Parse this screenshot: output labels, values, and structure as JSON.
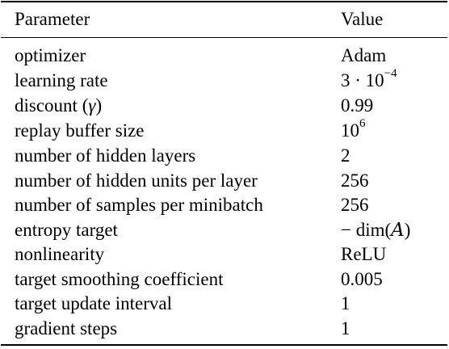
{
  "header": {
    "param_label": "Parameter",
    "value_label": "Value"
  },
  "rows": [
    {
      "param": "optimizer",
      "value": "Adam"
    },
    {
      "param": "learning rate",
      "value_base": "3 · 10",
      "value_exp": "−4"
    },
    {
      "param_text": "discount (",
      "param_symbol": "γ",
      "param_close": ")",
      "value": "0.99"
    },
    {
      "param": "replay buffer size",
      "value_base": "10",
      "value_exp": "6"
    },
    {
      "param": "number of hidden layers",
      "value": "2"
    },
    {
      "param": "number of hidden units per layer",
      "value": "256"
    },
    {
      "param": "number of samples per minibatch",
      "value": "256"
    },
    {
      "param": "entropy target",
      "value_prefix": "− dim(",
      "value_symbol": "A",
      "value_suffix": ")"
    },
    {
      "param": "nonlinearity",
      "value": "ReLU"
    },
    {
      "param": "target smoothing coefficient",
      "value": "0.005"
    },
    {
      "param": "target update interval",
      "value": "1"
    },
    {
      "param": "gradient steps",
      "value": "1"
    }
  ]
}
